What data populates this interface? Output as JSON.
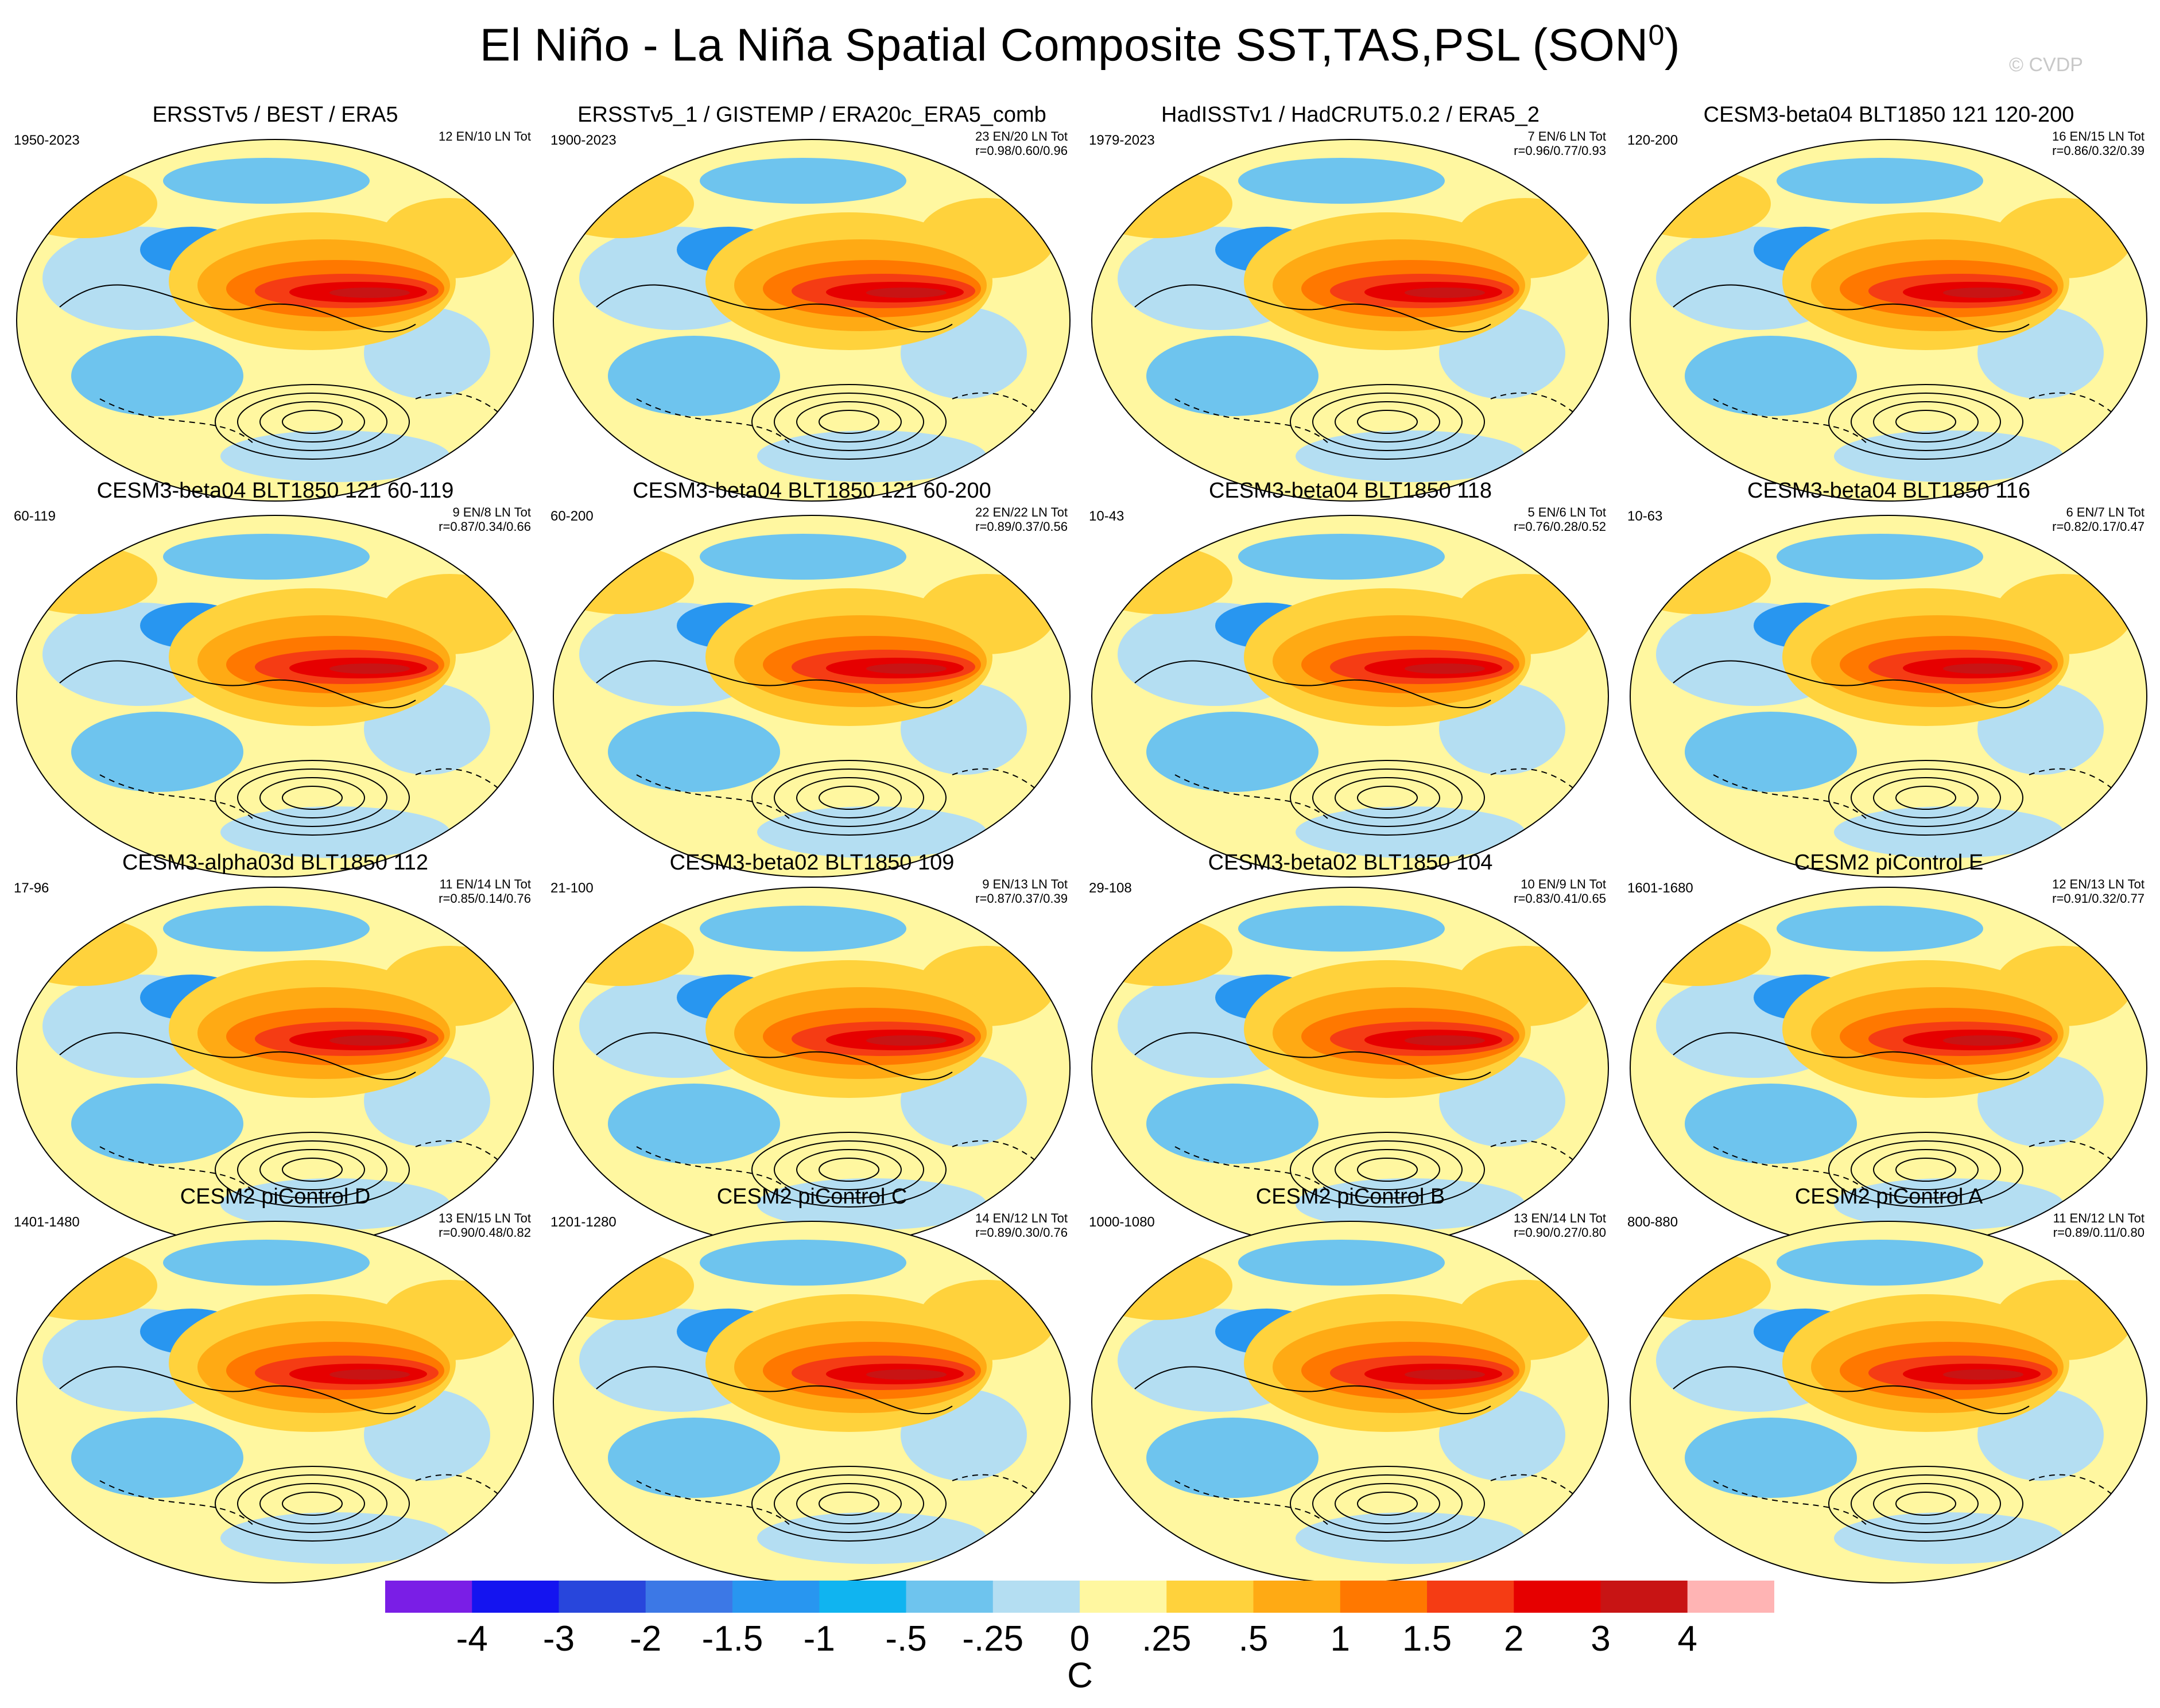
{
  "title": "El Niño - La Niña Spatial Composite SST,TAS,PSL (SON",
  "title_superscript": "0",
  "title_suffix": ")",
  "credit": "© CVDP",
  "panels": [
    {
      "title": "ERSSTv5 / BEST / ERA5",
      "years": "1950-2023",
      "stats1": "12 EN/10 LN Tot",
      "stats2": ""
    },
    {
      "title": "ERSSTv5_1 / GISTEMP / ERA20c_ERA5_comb",
      "years": "1900-2023",
      "stats1": "23 EN/20 LN Tot",
      "stats2": "r=0.98/0.60/0.96"
    },
    {
      "title": "HadISSTv1 / HadCRUT5.0.2 / ERA5_2",
      "years": "1979-2023",
      "stats1": "7 EN/6 LN Tot",
      "stats2": "r=0.96/0.77/0.93"
    },
    {
      "title": "CESM3-beta04 BLT1850 121 120-200",
      "years": "120-200",
      "stats1": "16 EN/15 LN Tot",
      "stats2": "r=0.86/0.32/0.39"
    },
    {
      "title": "CESM3-beta04 BLT1850 121 60-119",
      "years": "60-119",
      "stats1": "9 EN/8 LN Tot",
      "stats2": "r=0.87/0.34/0.66"
    },
    {
      "title": "CESM3-beta04 BLT1850 121 60-200",
      "years": "60-200",
      "stats1": "22 EN/22 LN Tot",
      "stats2": "r=0.89/0.37/0.56"
    },
    {
      "title": "CESM3-beta04 BLT1850 118",
      "years": "10-43",
      "stats1": "5 EN/6 LN Tot",
      "stats2": "r=0.76/0.28/0.52"
    },
    {
      "title": "CESM3-beta04 BLT1850 116",
      "years": "10-63",
      "stats1": "6 EN/7 LN Tot",
      "stats2": "r=0.82/0.17/0.47"
    },
    {
      "title": "CESM3-alpha03d BLT1850 112",
      "years": "17-96",
      "stats1": "11 EN/14 LN Tot",
      "stats2": "r=0.85/0.14/0.76"
    },
    {
      "title": "CESM3-beta02 BLT1850 109",
      "years": "21-100",
      "stats1": "9 EN/13 LN Tot",
      "stats2": "r=0.87/0.37/0.39"
    },
    {
      "title": "CESM3-beta02 BLT1850 104",
      "years": "29-108",
      "stats1": "10 EN/9 LN Tot",
      "stats2": "r=0.83/0.41/0.65"
    },
    {
      "title": "CESM2 piControl E",
      "years": "1601-1680",
      "stats1": "12 EN/13 LN Tot",
      "stats2": "r=0.91/0.32/0.77"
    },
    {
      "title": "CESM2 piControl D",
      "years": "1401-1480",
      "stats1": "13 EN/15 LN Tot",
      "stats2": "r=0.90/0.48/0.82"
    },
    {
      "title": "CESM2 piControl C",
      "years": "1201-1280",
      "stats1": "14 EN/12 LN Tot",
      "stats2": "r=0.89/0.30/0.76"
    },
    {
      "title": "CESM2 piControl B",
      "years": "1000-1080",
      "stats1": "13 EN/14 LN Tot",
      "stats2": "r=0.90/0.27/0.80"
    },
    {
      "title": "CESM2 piControl A",
      "years": "800-880",
      "stats1": "11 EN/12 LN Tot",
      "stats2": "r=0.89/0.11/0.80"
    }
  ],
  "colorbar": {
    "colors": [
      "#7a1ee6",
      "#1414f0",
      "#2846dc",
      "#3c78e6",
      "#2896f0",
      "#10b4f0",
      "#6ec4ee",
      "#b4def2",
      "#fff7a0",
      "#ffd23c",
      "#ffaa14",
      "#ff7800",
      "#f53c14",
      "#e60000",
      "#c81414",
      "#ffb4b4"
    ],
    "labels": [
      "-4",
      "-3",
      "-2",
      "-1.5",
      "-1",
      "-.5",
      "-.25",
      "0",
      ".25",
      ".5",
      "1",
      "1.5",
      "2",
      "3",
      "4"
    ],
    "unit": "C"
  },
  "map_colors": {
    "land": "#fff7a0",
    "ocean": "#b4def2",
    "neg1": "#6ec4ee",
    "neg2": "#2896f0",
    "neg3": "#2846dc",
    "pos1": "#ffd23c",
    "pos2": "#ffaa14",
    "pos3": "#ff7800",
    "pos4": "#f53c14",
    "pos5": "#e60000",
    "pos6": "#c81414",
    "pos7": "#ffb4b4"
  }
}
